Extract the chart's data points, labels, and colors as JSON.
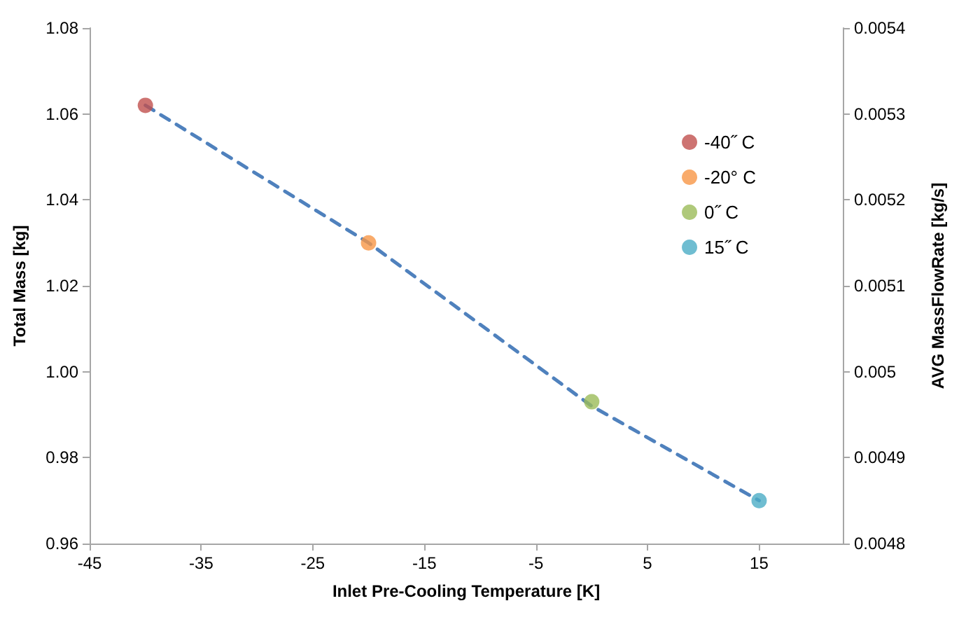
{
  "chart_data": {
    "type": "scatter",
    "xlabel": "Inlet Pre-Cooling Temperature [K]",
    "ylabel": "Total Mass [kg]",
    "y2label": "AVG MassFlowRate [kg/s]",
    "xlim": [
      -45,
      22.5
    ],
    "xticks": [
      -45,
      -35,
      -25,
      -15,
      -5,
      5,
      15
    ],
    "ylim": [
      0.96,
      1.08
    ],
    "yticks": [
      {
        "value": 0.96,
        "label": "0.96"
      },
      {
        "value": 0.98,
        "label": "0.98"
      },
      {
        "value": 1.0,
        "label": "1.00"
      },
      {
        "value": 1.02,
        "label": "1.02"
      },
      {
        "value": 1.04,
        "label": "1.04"
      },
      {
        "value": 1.06,
        "label": "1.06"
      },
      {
        "value": 1.08,
        "label": "1.08"
      }
    ],
    "y2lim": [
      0.0048,
      0.0054
    ],
    "y2ticks": [
      0.0048,
      0.0049,
      0.005,
      0.0051,
      0.0052,
      0.0053,
      0.0054
    ],
    "series": [
      {
        "name": "-40˝ C",
        "color": "#c0504d",
        "x": [
          -40
        ],
        "values": [
          1.062
        ]
      },
      {
        "name": "-20° C",
        "color": "#f79646",
        "x": [
          -20
        ],
        "values": [
          1.03
        ]
      },
      {
        "name": "0˝ C",
        "color": "#9bbb59",
        "x": [
          0
        ],
        "values": [
          0.993
        ]
      },
      {
        "name": "15˝ C",
        "color": "#4bacc6",
        "x": [
          15
        ],
        "values": [
          0.97
        ]
      },
      {
        "type": "line",
        "axis": "y2",
        "color": "#4f81bd",
        "line_style": "dashed",
        "marker": "none",
        "x": [
          -40,
          -20,
          0,
          15
        ],
        "values": [
          0.00531,
          0.00515,
          0.00496,
          0.00485
        ]
      }
    ],
    "marker": "circle",
    "grid": false,
    "legend": "right"
  }
}
